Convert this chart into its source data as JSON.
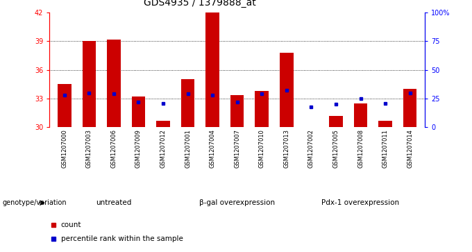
{
  "title": "GDS4935 / 1379888_at",
  "samples": [
    "GSM1207000",
    "GSM1207003",
    "GSM1207006",
    "GSM1207009",
    "GSM1207012",
    "GSM1207001",
    "GSM1207004",
    "GSM1207007",
    "GSM1207010",
    "GSM1207013",
    "GSM1207002",
    "GSM1207005",
    "GSM1207008",
    "GSM1207011",
    "GSM1207014"
  ],
  "counts": [
    34.5,
    39.0,
    39.2,
    33.2,
    30.7,
    35.0,
    42.0,
    33.4,
    33.8,
    37.8,
    30.05,
    31.2,
    32.5,
    30.7,
    34.0
  ],
  "percentile_pct": [
    28,
    30,
    29,
    22,
    21,
    29,
    28,
    22,
    29,
    32,
    18,
    20,
    25,
    21,
    30
  ],
  "groups": [
    {
      "label": "untreated",
      "start": 0,
      "end": 5
    },
    {
      "label": "β-gal overexpression",
      "start": 5,
      "end": 10
    },
    {
      "label": "Pdx-1 overexpression",
      "start": 10,
      "end": 15
    }
  ],
  "ymin": 30,
  "ymax": 42,
  "yticks": [
    30,
    33,
    36,
    39,
    42
  ],
  "right_yticks": [
    0,
    25,
    50,
    75,
    100
  ],
  "bar_color": "#cc0000",
  "dot_color": "#0000cc",
  "sample_bg_color": "#c8c8c8",
  "group_bg_color": "#90ee90",
  "panel_bg": "#ffffff",
  "title_fontsize": 10,
  "tick_fontsize": 7,
  "legend_label_count": "count",
  "legend_label_pct": "percentile rank within the sample"
}
